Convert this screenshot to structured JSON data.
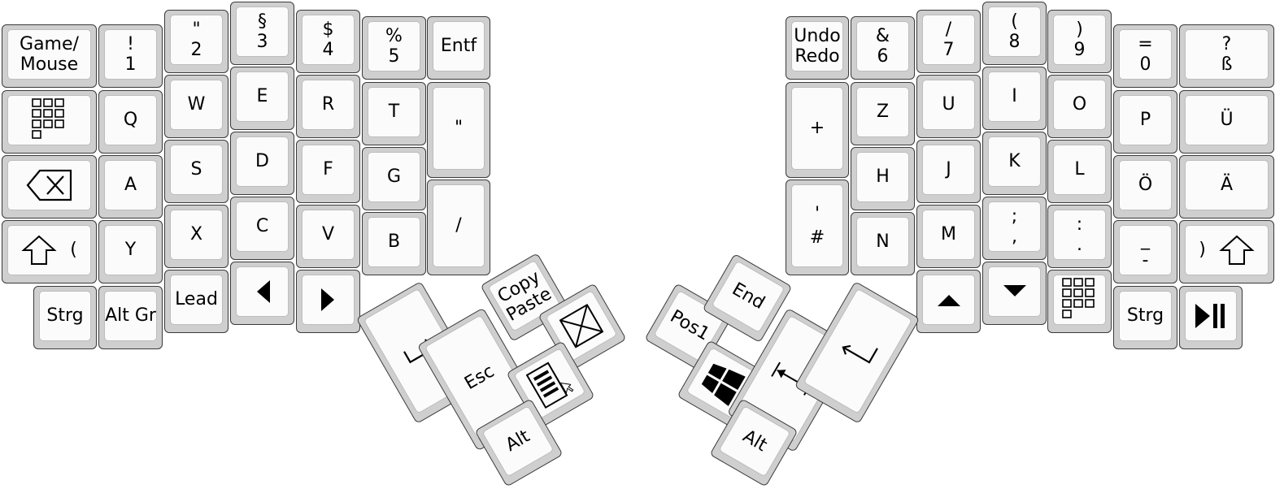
{
  "left_half": [
    {
      "id": "game-mouse",
      "l1": "Game/",
      "l2": "Mouse"
    },
    {
      "id": "1",
      "l1": "!",
      "l2": "1"
    },
    {
      "id": "2",
      "l1": "\"",
      "l2": "2"
    },
    {
      "id": "3",
      "l1": "§",
      "l2": "3"
    },
    {
      "id": "4",
      "l1": "$",
      "l2": "4"
    },
    {
      "id": "5",
      "l1": "%",
      "l2": "5"
    },
    {
      "id": "entf",
      "l1": "Entf"
    },
    {
      "id": "numpad-left",
      "icon": "numpad-icon"
    },
    {
      "id": "q",
      "l1": "Q"
    },
    {
      "id": "w",
      "l1": "W"
    },
    {
      "id": "e",
      "l1": "E"
    },
    {
      "id": "r",
      "l1": "R"
    },
    {
      "id": "t",
      "l1": "T"
    },
    {
      "id": "quote",
      "l1": "\""
    },
    {
      "id": "backspace",
      "icon": "backspace-icon"
    },
    {
      "id": "a",
      "l1": "A"
    },
    {
      "id": "s",
      "l1": "S"
    },
    {
      "id": "d",
      "l1": "D"
    },
    {
      "id": "f",
      "l1": "F"
    },
    {
      "id": "g",
      "l1": "G"
    },
    {
      "id": "slash",
      "l1": "/"
    },
    {
      "id": "shift-left",
      "icon": "shift-icon",
      "l1": "("
    },
    {
      "id": "y",
      "l1": "Y"
    },
    {
      "id": "x",
      "l1": "X"
    },
    {
      "id": "c",
      "l1": "C"
    },
    {
      "id": "v",
      "l1": "V"
    },
    {
      "id": "b",
      "l1": "B"
    },
    {
      "id": "strg-left",
      "l1": "Strg"
    },
    {
      "id": "alt-gr",
      "l1": "Alt Gr"
    },
    {
      "id": "lead",
      "l1": "Lead"
    },
    {
      "id": "arrow-left",
      "icon": "triangle-left-icon"
    },
    {
      "id": "arrow-right",
      "icon": "triangle-right-icon"
    }
  ],
  "left_thumb": [
    {
      "id": "space",
      "icon": "space-icon"
    },
    {
      "id": "esc",
      "l1": "Esc"
    },
    {
      "id": "copy-paste",
      "l1": "Copy",
      "l2": "Paste"
    },
    {
      "id": "cancel",
      "icon": "cross-box-icon"
    },
    {
      "id": "menu",
      "icon": "menu-icon"
    },
    {
      "id": "alt-left",
      "l1": "Alt"
    }
  ],
  "right_half": [
    {
      "id": "undo-redo",
      "l1": "Undo",
      "l2": "Redo"
    },
    {
      "id": "6",
      "l1": "&",
      "l2": "6"
    },
    {
      "id": "7",
      "l1": "/",
      "l2": "7"
    },
    {
      "id": "8",
      "l1": "(",
      "l2": "8"
    },
    {
      "id": "9",
      "l1": ")",
      "l2": "9"
    },
    {
      "id": "0",
      "l1": "=",
      "l2": "0"
    },
    {
      "id": "sz",
      "l1": "?",
      "l2": "ß"
    },
    {
      "id": "plus",
      "l1": "+"
    },
    {
      "id": "z",
      "l1": "Z"
    },
    {
      "id": "u",
      "l1": "U"
    },
    {
      "id": "i",
      "l1": "I"
    },
    {
      "id": "o",
      "l1": "O"
    },
    {
      "id": "p",
      "l1": "P"
    },
    {
      "id": "ue",
      "l1": "Ü"
    },
    {
      "id": "hash",
      "l1": "'",
      "l2": "#"
    },
    {
      "id": "h",
      "l1": "H"
    },
    {
      "id": "j",
      "l1": "J"
    },
    {
      "id": "k",
      "l1": "K"
    },
    {
      "id": "l",
      "l1": "L"
    },
    {
      "id": "oe",
      "l1": "Ö"
    },
    {
      "id": "ae",
      "l1": "Ä"
    },
    {
      "id": "n",
      "l1": "N"
    },
    {
      "id": "m",
      "l1": "M"
    },
    {
      "id": "comma",
      "l1": ";",
      "l2": ","
    },
    {
      "id": "period",
      "l1": ":",
      "l2": "."
    },
    {
      "id": "minus",
      "l1": "_",
      "l2": "-"
    },
    {
      "id": "shift-right",
      "l1": ")",
      "icon": "shift-icon"
    },
    {
      "id": "arrow-up",
      "icon": "triangle-up-icon"
    },
    {
      "id": "arrow-down",
      "icon": "triangle-down-icon"
    },
    {
      "id": "numpad-right",
      "icon": "numpad-icon"
    },
    {
      "id": "strg-right",
      "l1": "Strg"
    },
    {
      "id": "play-pause",
      "icon": "play-pause-icon"
    }
  ],
  "right_thumb": [
    {
      "id": "pos1",
      "l1": "Pos1"
    },
    {
      "id": "end",
      "l1": "End"
    },
    {
      "id": "windows",
      "icon": "windows-icon"
    },
    {
      "id": "tab",
      "icon": "tab-icon"
    },
    {
      "id": "enter",
      "icon": "enter-icon"
    },
    {
      "id": "alt-right",
      "l1": "Alt"
    }
  ]
}
